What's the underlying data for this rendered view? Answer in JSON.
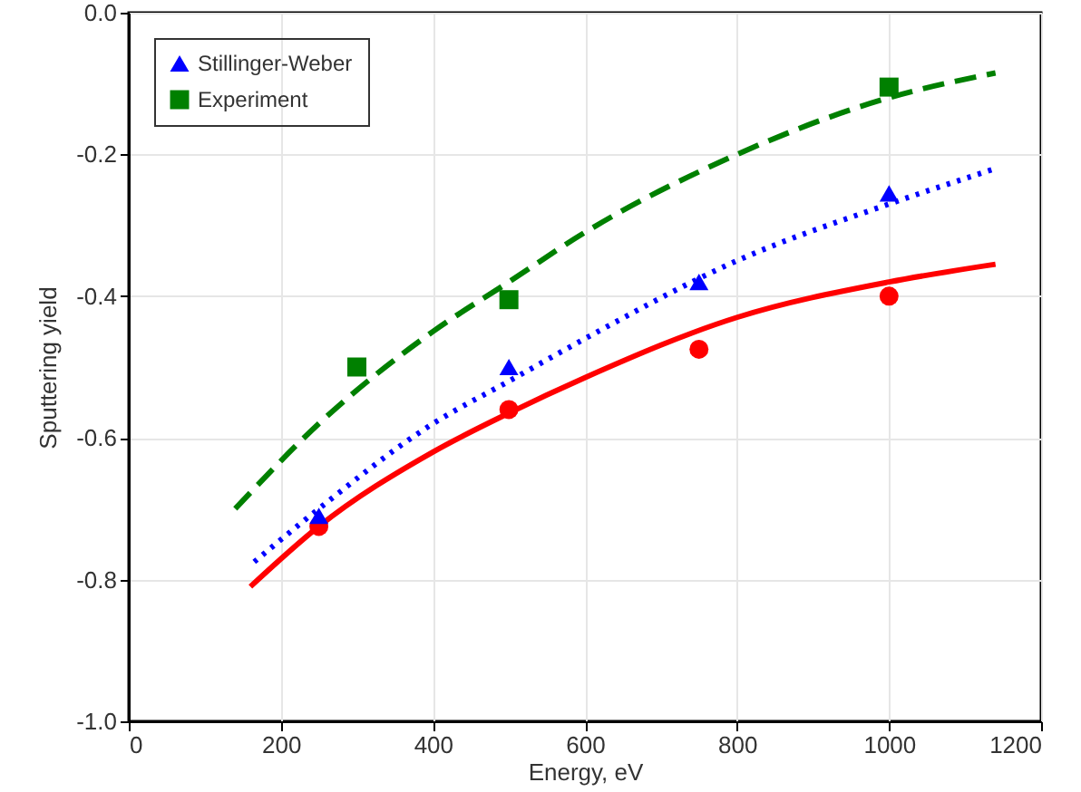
{
  "chart_data": {
    "type": "scatter",
    "xlabel": "Energy, eV",
    "ylabel": "Sputtering yield",
    "xlim": [
      0,
      1200
    ],
    "xticks": [
      0,
      200,
      400,
      600,
      800,
      1000,
      1200
    ],
    "ylim": [
      -1.0,
      0.0
    ],
    "yticks": [
      {
        "value": -1.0,
        "label": "-1.0"
      },
      {
        "value": -0.8,
        "label": "-0.8"
      },
      {
        "value": -0.6,
        "label": "-0.6"
      },
      {
        "value": -0.4,
        "label": "-0.4"
      },
      {
        "value": -0.2,
        "label": "-0.2"
      },
      {
        "value": 0.0,
        "label": "0.0"
      }
    ],
    "grid": true,
    "legend": "top left",
    "series": [
      {
        "type": "line",
        "color": "#ff0000",
        "line_style": "solid",
        "x": [
          160,
          250,
          400,
          500,
          600,
          800,
          1000,
          1140
        ],
        "values": [
          -0.81,
          -0.725,
          -0.62,
          -0.565,
          -0.515,
          -0.43,
          -0.38,
          -0.355
        ]
      },
      {
        "type": "line",
        "color": "#0000ff",
        "line_style": "dotted",
        "x": [
          165,
          250,
          400,
          500,
          600,
          800,
          1000,
          1140
        ],
        "values": [
          -0.775,
          -0.7,
          -0.58,
          -0.52,
          -0.46,
          -0.35,
          -0.27,
          -0.22
        ]
      },
      {
        "type": "line",
        "color": "#008000",
        "line_style": "dashed",
        "x": [
          140,
          250,
          400,
          500,
          600,
          800,
          1000,
          1140
        ],
        "values": [
          -0.7,
          -0.58,
          -0.45,
          -0.38,
          -0.31,
          -0.2,
          -0.12,
          -0.085
        ]
      },
      {
        "color": "#ff0000",
        "marker": "circle",
        "x": [
          250,
          500,
          750,
          1000
        ],
        "values": [
          -0.725,
          -0.56,
          -0.475,
          -0.4
        ]
      },
      {
        "name": "Stillinger-Weber",
        "color": "#0000ff",
        "marker": "triangle",
        "x": [
          250,
          500,
          750,
          1000
        ],
        "values": [
          -0.71,
          -0.5,
          -0.38,
          -0.255
        ]
      },
      {
        "name": "Experiment",
        "color": "#008000",
        "marker": "square",
        "x": [
          300,
          500,
          1000
        ],
        "values": [
          -0.5,
          -0.405,
          -0.105
        ]
      }
    ]
  }
}
